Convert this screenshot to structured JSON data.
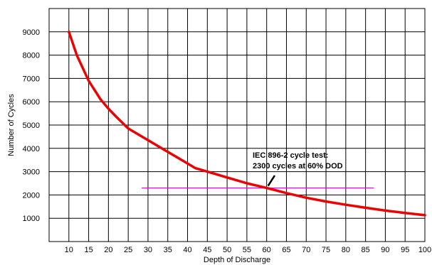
{
  "chart_data": {
    "type": "line",
    "title": "",
    "xlabel": "Depth of Discharge",
    "ylabel": "Number of Cycles",
    "xlim": [
      5,
      100
    ],
    "ylim": [
      0,
      10000
    ],
    "x_ticks": [
      10,
      15,
      20,
      25,
      30,
      35,
      40,
      45,
      50,
      55,
      60,
      65,
      70,
      75,
      80,
      85,
      90,
      95,
      100
    ],
    "y_ticks": [
      1000,
      2000,
      3000,
      4000,
      5000,
      6000,
      7000,
      8000,
      9000
    ],
    "grid": true,
    "series": [
      {
        "color": "#ee0000",
        "x": [
          10,
          12,
          15,
          18,
          20,
          22,
          25,
          30,
          35,
          40,
          42,
          45,
          50,
          55,
          60,
          65,
          70,
          75,
          80,
          85,
          90,
          95,
          100
        ],
        "y": [
          9000,
          8000,
          6900,
          6100,
          5700,
          5350,
          4850,
          4350,
          3850,
          3350,
          3150,
          3000,
          2750,
          2500,
          2300,
          2080,
          1880,
          1720,
          1580,
          1450,
          1330,
          1230,
          1130
        ]
      },
      {
        "color": "#ee00ee",
        "x": [
          28.5,
          87
        ],
        "y": [
          2300,
          2300
        ]
      }
    ],
    "annotation": {
      "lines": [
        "IEC 896-2 cycle test:",
        "2300 cycles at 60% DOD"
      ],
      "point": [
        60,
        2300
      ]
    }
  }
}
